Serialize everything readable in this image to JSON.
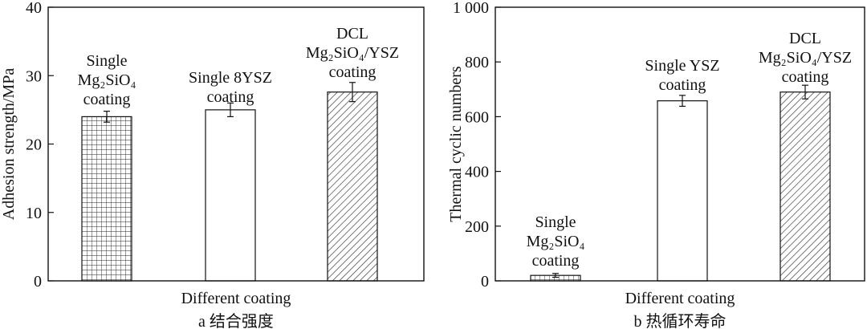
{
  "chart_data": [
    {
      "type": "bar",
      "panel_caption": "a  结合强度",
      "categories": [
        [
          "Single",
          "Mg₂SiO₄",
          "coating"
        ],
        [
          "Single 8YSZ",
          "coating"
        ],
        [
          "DCL",
          "Mg₂SiO₄/YSZ",
          "coating"
        ]
      ],
      "values": [
        24.0,
        25.0,
        27.6
      ],
      "errors": [
        0.8,
        1.0,
        1.4
      ],
      "patterns": [
        "grid",
        "plain",
        "hatch"
      ],
      "xlabel": "Different coating",
      "ylabel": "Adhesion strength/MPa",
      "ylim": [
        0,
        40
      ],
      "yticks": [
        0,
        10,
        20,
        30,
        40
      ],
      "ytick_labels": [
        "0",
        "10",
        "20",
        "30",
        "40"
      ]
    },
    {
      "type": "bar",
      "panel_caption": "b  热循环寿命",
      "categories": [
        [
          "Single",
          "Mg₂SiO₄",
          "coating"
        ],
        [
          "Single YSZ",
          "coating"
        ],
        [
          "DCL",
          "Mg₂SiO₄/YSZ",
          "coating"
        ]
      ],
      "values": [
        20,
        658,
        690
      ],
      "errors": [
        7,
        20,
        25
      ],
      "patterns": [
        "grid",
        "plain",
        "hatch"
      ],
      "xlabel": "Different coating",
      "ylabel": "Thermal cyclic numbers",
      "ylim": [
        0,
        1000
      ],
      "yticks": [
        0,
        200,
        400,
        600,
        800,
        1000
      ],
      "ytick_labels": [
        "0",
        "200",
        "400",
        "600",
        "800",
        "1 000"
      ]
    }
  ]
}
